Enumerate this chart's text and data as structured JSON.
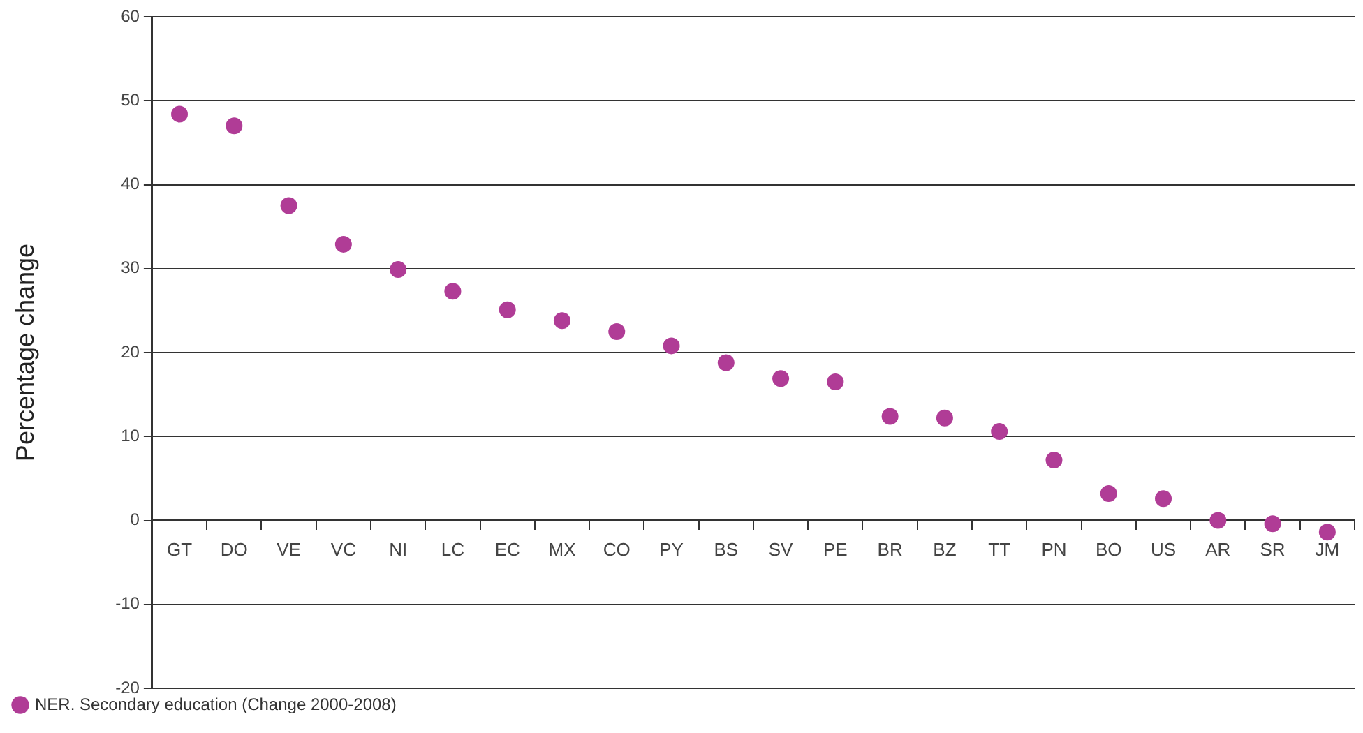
{
  "chart_data": {
    "type": "scatter",
    "ylabel": "Percentage change",
    "categories": [
      "GT",
      "DO",
      "VE",
      "VC",
      "NI",
      "LC",
      "EC",
      "MX",
      "CO",
      "PY",
      "BS",
      "SV",
      "PE",
      "BR",
      "BZ",
      "TT",
      "PN",
      "BO",
      "US",
      "AR",
      "SR",
      "JM"
    ],
    "series": [
      {
        "name": "NER. Secondary education (Change 2000-2008)",
        "color": "#b03c96",
        "values": [
          48.4,
          47.0,
          37.5,
          32.9,
          29.9,
          27.3,
          25.1,
          23.8,
          22.5,
          20.8,
          18.8,
          16.9,
          16.5,
          12.4,
          12.2,
          10.6,
          7.2,
          3.2,
          2.6,
          0,
          -0.4,
          -1.4
        ]
      }
    ],
    "ylim": [
      -20,
      60
    ],
    "yticks": [
      -20,
      -10,
      0,
      10,
      20,
      30,
      40,
      50,
      60
    ],
    "grid": "y",
    "legend": "bottom left",
    "marker": "circle"
  }
}
